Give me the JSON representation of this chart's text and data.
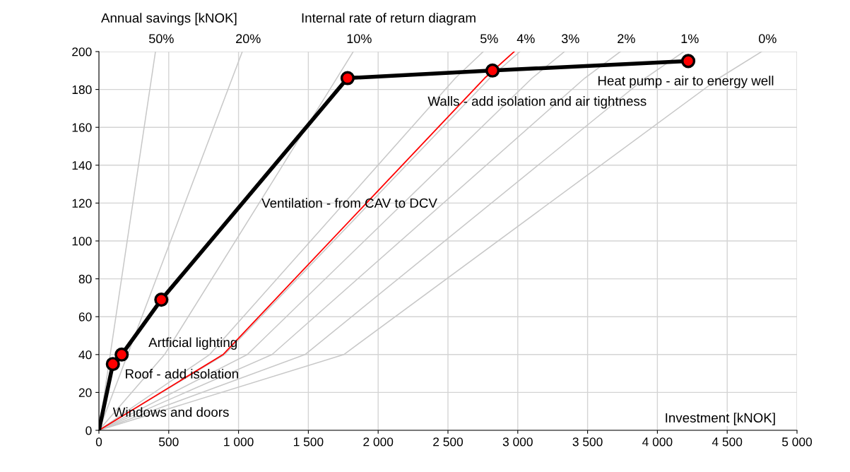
{
  "chart_data": {
    "type": "line",
    "title": "Internal rate of return diagram",
    "xlabel": "Investment [kNOK]",
    "ylabel": "Annual savings [kNOK]",
    "xlim": [
      0,
      5000
    ],
    "ylim": [
      0,
      200
    ],
    "xticks": [
      0,
      500,
      {
        "value": 1000,
        "label": "1 000"
      },
      {
        "value": 1500,
        "label": "1 500"
      },
      {
        "value": 2000,
        "label": "2 000"
      },
      {
        "value": 2500,
        "label": "2 500"
      },
      {
        "value": 3000,
        "label": "3 000"
      },
      {
        "value": 3500,
        "label": "3 500"
      },
      {
        "value": 4000,
        "label": "4 000"
      },
      {
        "value": 4500,
        "label": "4 500"
      },
      {
        "value": 5000,
        "label": "5 000"
      }
    ],
    "yticks": [
      0,
      20,
      40,
      60,
      80,
      100,
      120,
      140,
      160,
      180,
      200
    ],
    "grid": true,
    "marker": "none",
    "line_style": "solid",
    "series": [
      {
        "name": "50%",
        "color": "#c8c8c8",
        "x": [
          0,
          405
        ],
        "values": [
          0,
          200
        ]
      },
      {
        "name": "20%",
        "color": "#c8c8c8",
        "x": [
          0,
          1027
        ],
        "values": [
          0,
          200
        ]
      },
      {
        "name": "10%",
        "color": "#c8c8c8",
        "x": [
          0,
          470,
          1300,
          1822
        ],
        "values": [
          0,
          40,
          138,
          200
        ]
      },
      {
        "name": "5%",
        "color": "#c8c8c8",
        "x": [
          0,
          793,
          2553,
          2753
        ],
        "values": [
          0,
          40,
          186,
          200
        ]
      },
      {
        "name": "4%",
        "color": "#c8c8c8",
        "x": [
          0,
          900,
          2800,
          3016
        ],
        "values": [
          0,
          40,
          186,
          200
        ]
      },
      {
        "name": "3%",
        "color": "#c8c8c8",
        "x": [
          0,
          1063,
          3103,
          3335
        ],
        "values": [
          0,
          40,
          186,
          200
        ]
      },
      {
        "name": "2%",
        "color": "#c8c8c8",
        "x": [
          0,
          1240,
          3480,
          3735
        ],
        "values": [
          0,
          40,
          186,
          200
        ]
      },
      {
        "name": "1%",
        "color": "#c8c8c8",
        "x": [
          0,
          1476,
          3913,
          4190
        ],
        "values": [
          0,
          40,
          186,
          200
        ]
      },
      {
        "name": "0%",
        "color": "#c8c8c8",
        "x": [
          0,
          1754,
          4442,
          4747
        ],
        "values": [
          0,
          40,
          186,
          200
        ]
      },
      {
        "color": "#ff0000",
        "x": [
          0,
          889,
          2763,
          2975
        ],
        "values": [
          0,
          40,
          186,
          200
        ]
      },
      {
        "color": "#000000",
        "marker": "circle",
        "colors": [
          null,
          "#ff0000",
          "#ff0000",
          "#ff0000",
          "#ff0000",
          "#ff0000",
          "#ff0000"
        ],
        "x": [
          0,
          100,
          163,
          447,
          1781,
          2819,
          4221
        ],
        "values": [
          0,
          35,
          40,
          69,
          186,
          190,
          195
        ]
      }
    ],
    "annotations": [
      "Windows and doors",
      "Roof - add isolation",
      "Artficial lighting",
      "Ventilation - from CAV to DCV",
      "Walls - add isolation and air tightness",
      "Heat pump - air to energy well"
    ]
  }
}
